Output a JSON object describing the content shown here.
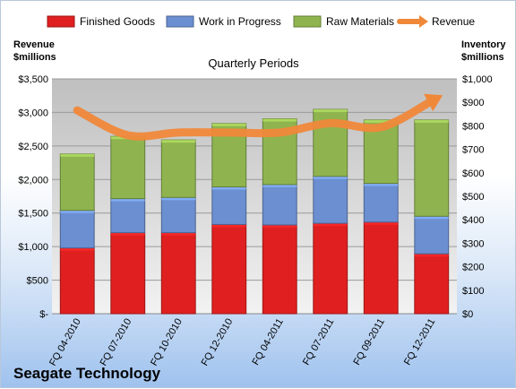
{
  "chart_data": {
    "type": "bar",
    "stacked": true,
    "title": "Quarterly Periods",
    "company": "Seagate Technology",
    "categories": [
      "FQ 04-2010",
      "FQ 07-2010",
      "FQ 10-2010",
      "FQ 12-2010",
      "FQ 04-2011",
      "FQ 07-2011",
      "FQ 09-2011",
      "FQ 12-2011"
    ],
    "series": [
      {
        "name": "Finished Goods",
        "axis": "right",
        "color": "#e02020",
        "values": [
          280,
          345,
          345,
          380,
          378,
          385,
          390,
          255
        ]
      },
      {
        "name": "Work in Progress",
        "axis": "right",
        "color": "#6b8fd0",
        "values": [
          160,
          145,
          150,
          160,
          172,
          200,
          165,
          160
        ]
      },
      {
        "name": "Raw Materials",
        "axis": "right",
        "color": "#8fb44f",
        "values": [
          240,
          265,
          245,
          270,
          280,
          285,
          270,
          410
        ]
      },
      {
        "name": "Revenue",
        "axis": "left",
        "type": "line",
        "color": "#f0883a",
        "values": [
          3030,
          2660,
          2700,
          2700,
          2700,
          2840,
          2780,
          3170
        ]
      }
    ],
    "yleft": {
      "label": "Revenue $millions",
      "lim": [
        0,
        3500
      ],
      "ticks": [
        "$-",
        "$500",
        "$1,000",
        "$1,500",
        "$2,000",
        "$2,500",
        "$3,000",
        "$3,500"
      ]
    },
    "yright": {
      "label": "Inventory $millions",
      "lim": [
        0,
        1000
      ],
      "ticks": [
        "$0",
        "$100",
        "$200",
        "$300",
        "$400",
        "$500",
        "$600",
        "$700",
        "$800",
        "$900",
        "$1,000"
      ]
    },
    "grid": true,
    "legend": "top"
  }
}
